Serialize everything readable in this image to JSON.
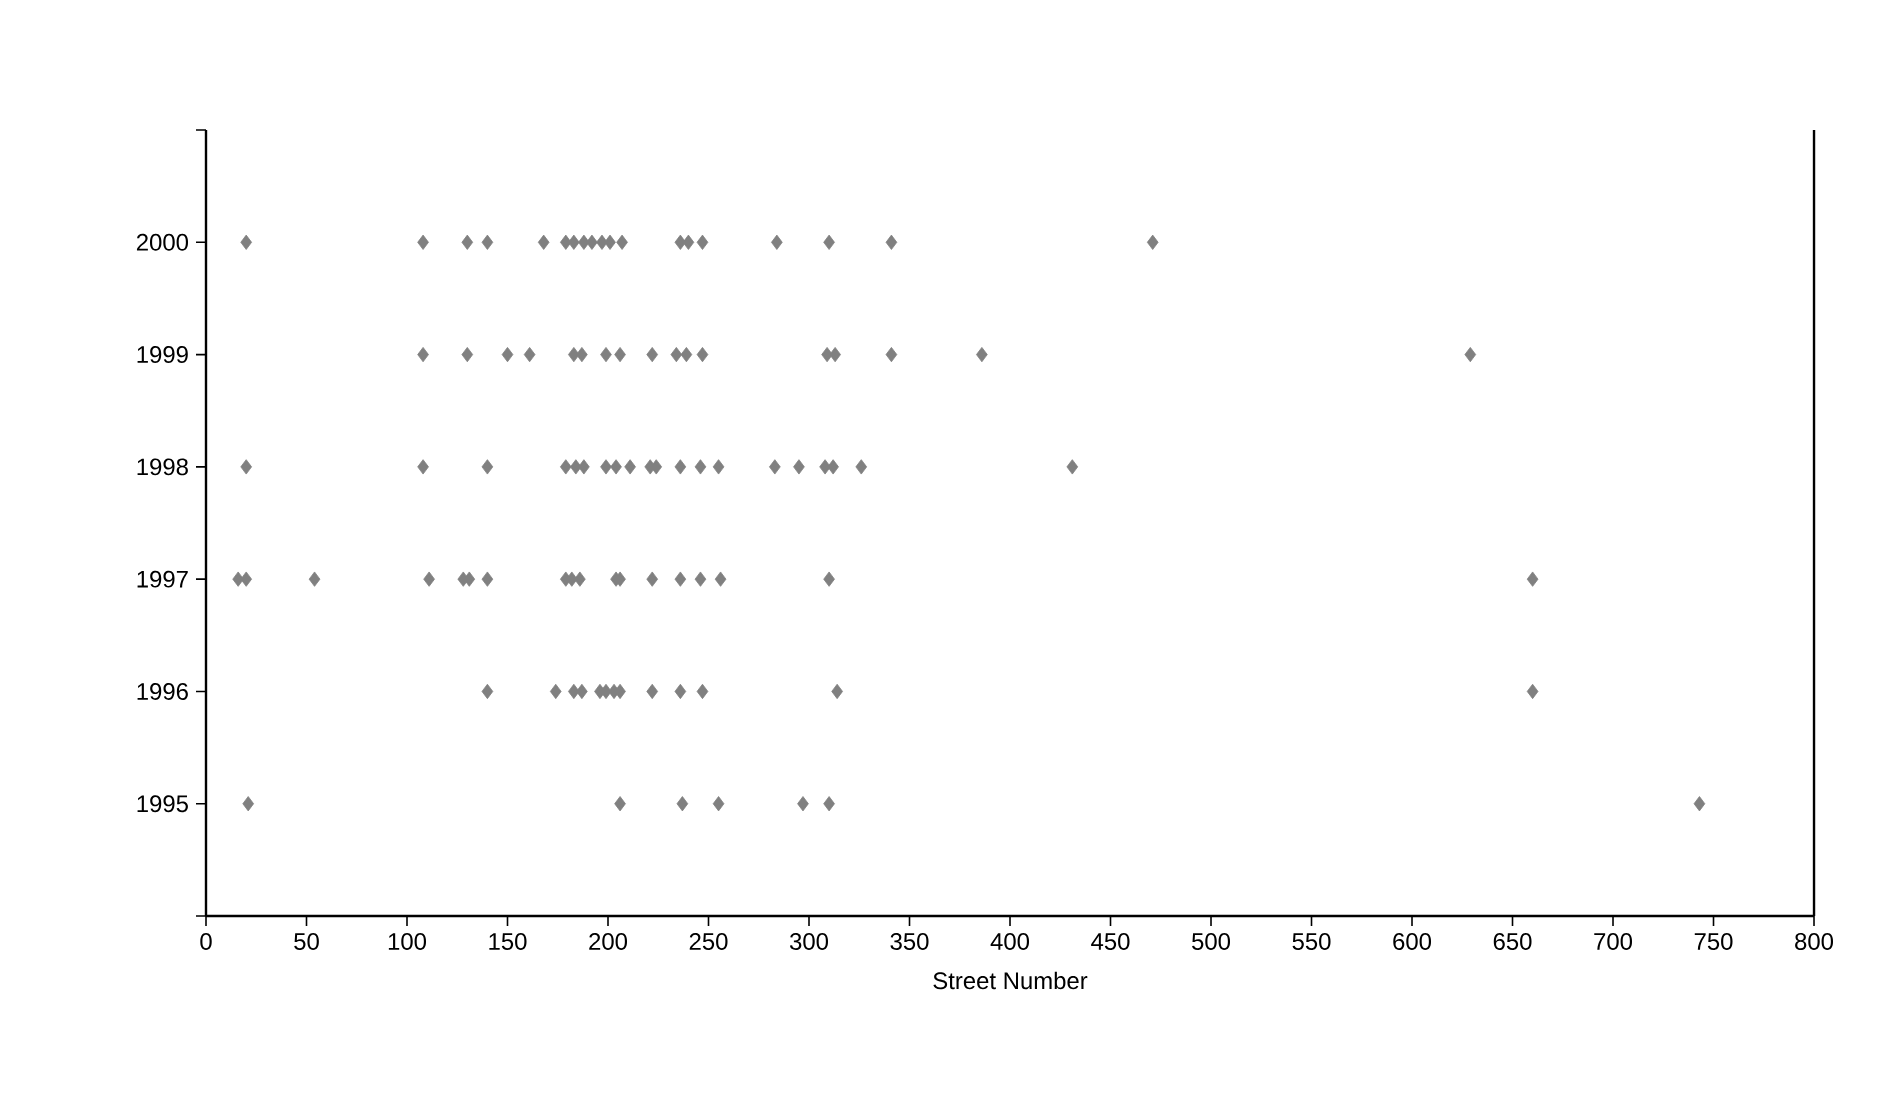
{
  "chart_data": {
    "type": "scatter",
    "xlabel": "Street Number",
    "marker": "diamond",
    "xlim": [
      0,
      800
    ],
    "xticks": [
      0,
      50,
      100,
      150,
      200,
      250,
      300,
      350,
      400,
      450,
      500,
      550,
      600,
      650,
      700,
      750,
      800
    ],
    "ylim": [
      1994,
      2001
    ],
    "yticks": [
      {
        "value": 1994,
        "label": null
      },
      1995,
      1996,
      1997,
      1998,
      1999,
      2000,
      {
        "value": 2001,
        "label": null
      }
    ],
    "series": [
      {
        "color": "#808080",
        "x": [
          20,
          108,
          130,
          140,
          168,
          179,
          183,
          188,
          192,
          197,
          201,
          207,
          236,
          240,
          247,
          284,
          310,
          341,
          471,
          108,
          130,
          150,
          161,
          183,
          187,
          199,
          206,
          222,
          234,
          239,
          247,
          309,
          313,
          341,
          386,
          629,
          20,
          108,
          140,
          179,
          184,
          188,
          199,
          204,
          211,
          221,
          224,
          236,
          246,
          255,
          283,
          295,
          308,
          312,
          326,
          431,
          16,
          20,
          54,
          111,
          128,
          131,
          140,
          179,
          182,
          186,
          204,
          206,
          222,
          236,
          246,
          256,
          310,
          660,
          140,
          174,
          183,
          187,
          196,
          199,
          203,
          206,
          222,
          236,
          247,
          314,
          660,
          21,
          206,
          237,
          255,
          297,
          310,
          743
        ],
        "values": [
          2000,
          2000,
          2000,
          2000,
          2000,
          2000,
          2000,
          2000,
          2000,
          2000,
          2000,
          2000,
          2000,
          2000,
          2000,
          2000,
          2000,
          2000,
          2000,
          1999,
          1999,
          1999,
          1999,
          1999,
          1999,
          1999,
          1999,
          1999,
          1999,
          1999,
          1999,
          1999,
          1999,
          1999,
          1999,
          1999,
          1998,
          1998,
          1998,
          1998,
          1998,
          1998,
          1998,
          1998,
          1998,
          1998,
          1998,
          1998,
          1998,
          1998,
          1998,
          1998,
          1998,
          1998,
          1998,
          1998,
          1997,
          1997,
          1997,
          1997,
          1997,
          1997,
          1997,
          1997,
          1997,
          1997,
          1997,
          1997,
          1997,
          1997,
          1997,
          1997,
          1997,
          1997,
          1996,
          1996,
          1996,
          1996,
          1996,
          1996,
          1996,
          1996,
          1996,
          1996,
          1996,
          1996,
          1996,
          1995,
          1995,
          1995,
          1995,
          1995,
          1995,
          1995
        ]
      }
    ]
  }
}
